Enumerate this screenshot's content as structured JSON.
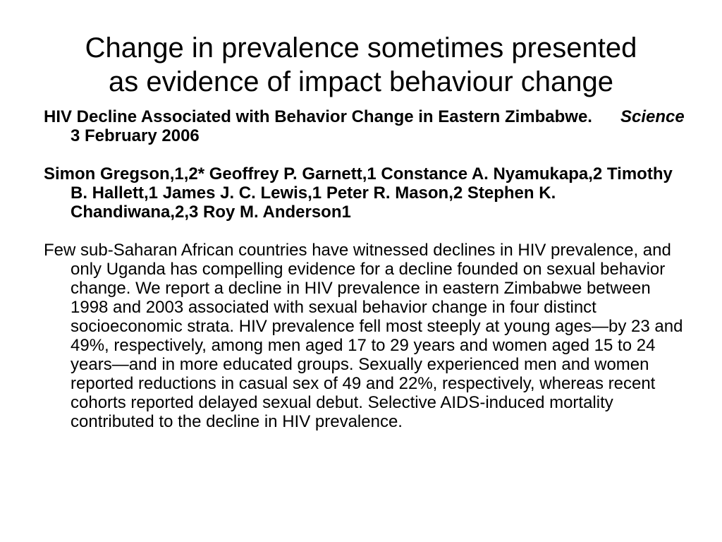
{
  "slide": {
    "title_line1": "Change in prevalence sometimes presented",
    "title_line2": "as evidence of impact behaviour change",
    "citation": {
      "article_title": "HIV Decline Associated with Behavior Change in Eastern Zimbabwe.",
      "journal": "Science",
      "date": "3 February 2006"
    },
    "authors": "Simon Gregson,1,2* Geoffrey P. Garnett,1 Constance A. Nyamukapa,2 Timothy B. Hallett,1 James J. C. Lewis,1 Peter R. Mason,2 Stephen K. Chandiwana,2,3 Roy M. Anderson1",
    "abstract": "Few sub-Saharan African countries have witnessed declines in HIV prevalence, and only Uganda has compelling evidence for a decline founded on sexual behavior change. We report a decline in HIV prevalence in eastern Zimbabwe between 1998 and 2003 associated with sexual behavior change in four distinct socioeconomic strata. HIV prevalence fell most steeply at young ages—by 23 and 49%, respectively, among men aged 17 to 29 years and women aged 15 to 24 years—and in more educated groups. Sexually experienced men and women reported reductions in casual sex of 49 and 22%, respectively, whereas recent cohorts reported delayed sexual debut. Selective AIDS-induced mortality contributed to the decline in HIV prevalence."
  }
}
